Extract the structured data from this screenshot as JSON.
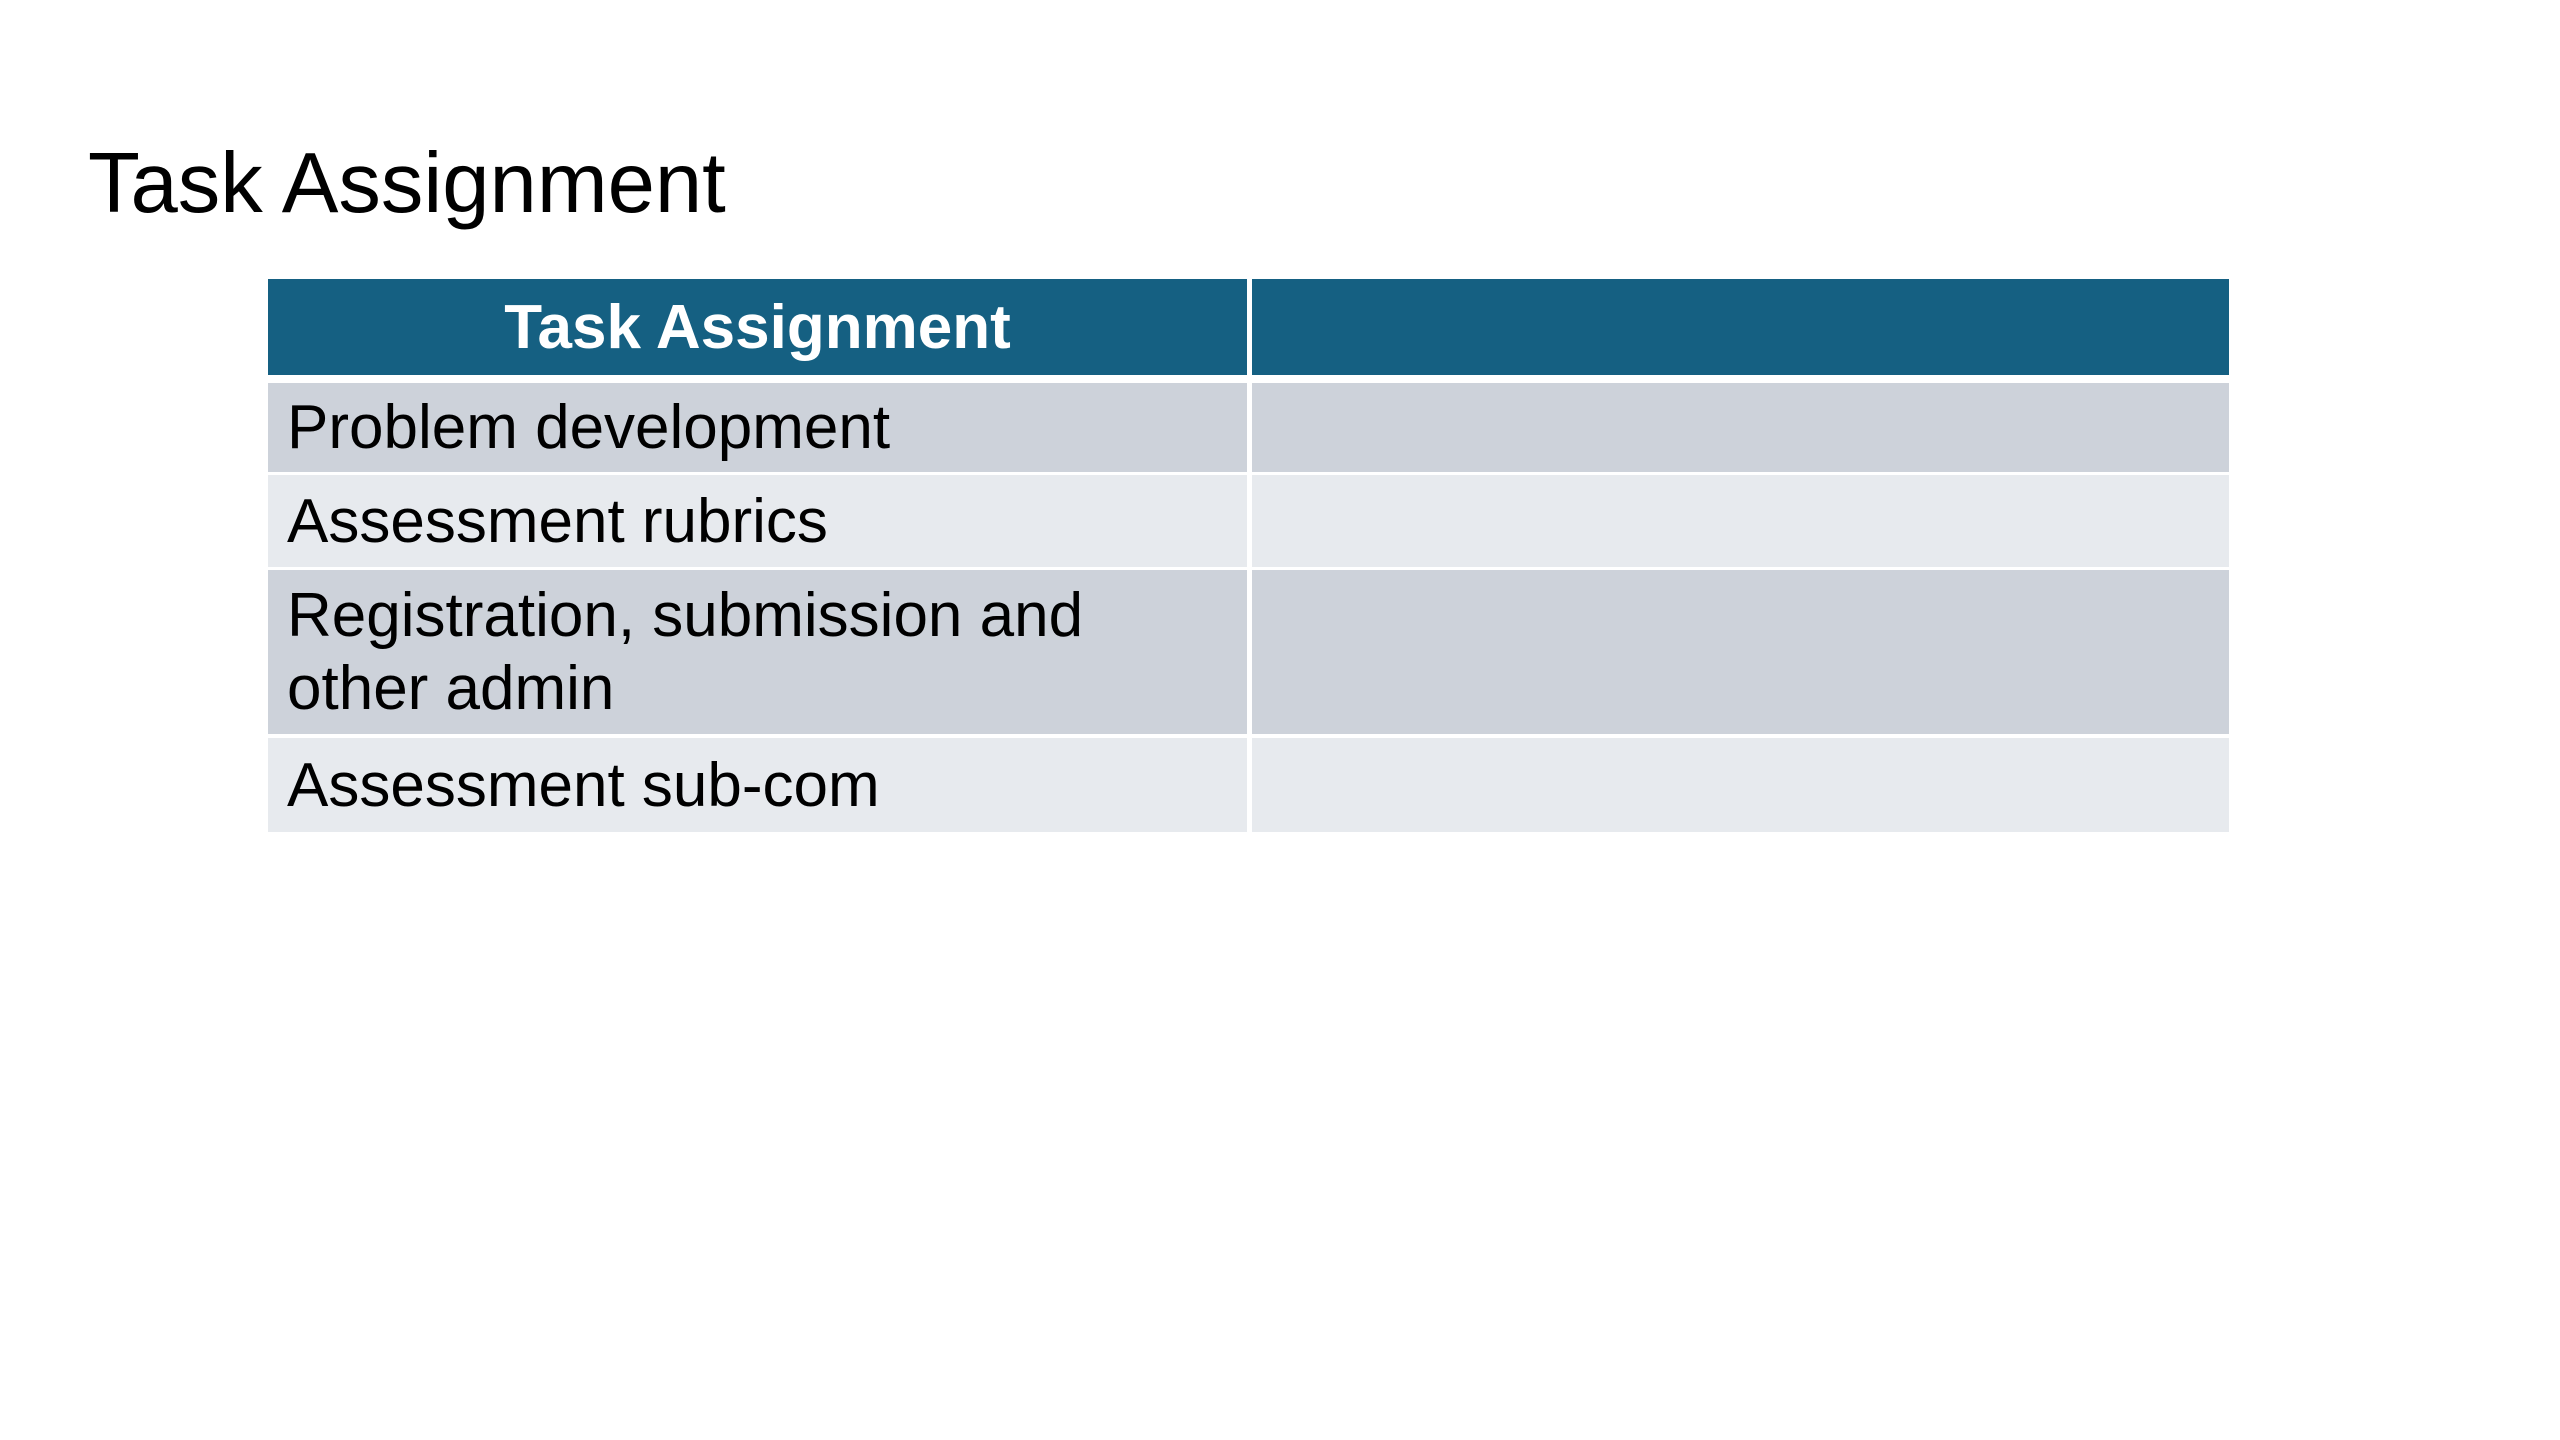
{
  "slide": {
    "title": "Task Assignment",
    "background_color": "#ffffff"
  },
  "table": {
    "accent_color": "#156082",
    "band_color_dark": "#CDD2DA",
    "band_color_light": "#E7EAEE",
    "header_text_color": "#ffffff",
    "body_text_color": "#000000",
    "header": {
      "col1": "Task Assignment",
      "col2": ""
    },
    "rows": [
      {
        "task": "Problem development",
        "assignee": ""
      },
      {
        "task": "Assessment rubrics",
        "assignee": ""
      },
      {
        "task": "Registration, submission and other admin",
        "assignee": ""
      },
      {
        "task": "Assessment sub-com",
        "assignee": ""
      }
    ]
  }
}
